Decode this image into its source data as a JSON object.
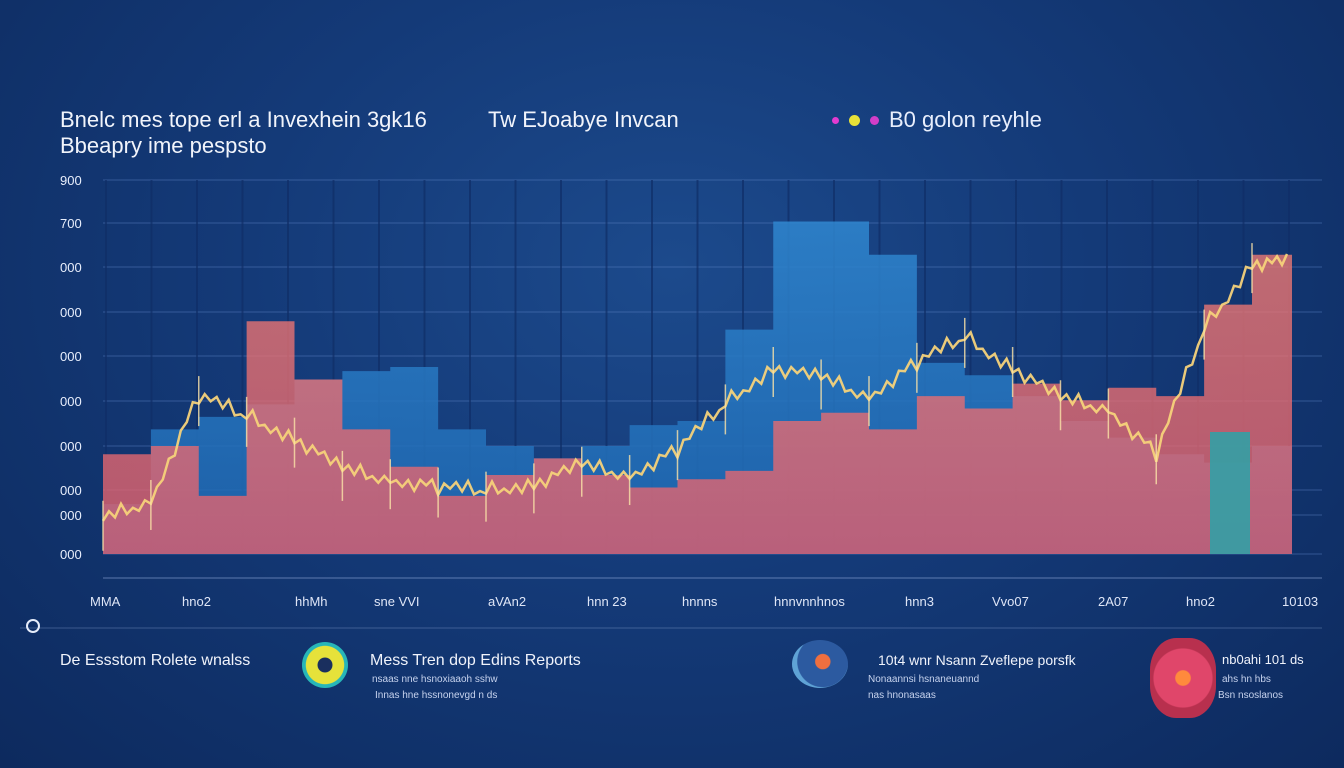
{
  "header": {
    "title_line1": "Bnelc mes tope erl a Invexhein 3gk16",
    "title_line2": "Bbeapry ime pespsto",
    "middle_text": "Tw EJoabye Invcan",
    "legend_text": "B0 golon reyhle"
  },
  "colors": {
    "background": "#143a78",
    "blue_area": "#2e7fc6",
    "salmon_area": "#ef6f72",
    "gold_line": "#f6d27a",
    "teal": "#2aa3a8",
    "legend_dot_1": "#e23bd0",
    "legend_dot_2": "#e8e238",
    "legend_dot_3": "#d23ec8"
  },
  "chart_data": {
    "type": "area",
    "y_tick_labels": [
      "900",
      "700",
      "000",
      "000",
      "000",
      "000",
      "000",
      "000",
      "000",
      "000"
    ],
    "x_tick_labels": [
      "MMA",
      "hno2",
      "hhMh",
      "sne VVI",
      "aVAn2",
      "hnn 23",
      "hnnns",
      "hnnvnnhnos",
      "hnn3",
      "Vvo07",
      "2A07",
      "hno2",
      "10103"
    ],
    "grid": true,
    "series": [
      {
        "name": "",
        "kind": "area",
        "color": "#2e7fc6",
        "x": [
          0,
          1,
          2,
          3,
          4,
          5,
          6,
          7,
          8,
          9,
          10,
          11,
          12,
          13,
          14,
          15,
          16,
          17,
          18,
          19,
          20,
          21,
          22,
          23,
          24
        ],
        "values": [
          120,
          300,
          330,
          360,
          420,
          440,
          450,
          300,
          260,
          230,
          260,
          310,
          320,
          540,
          800,
          800,
          720,
          460,
          430,
          380,
          320,
          280,
          240,
          220,
          260
        ]
      },
      {
        "name": "",
        "kind": "area",
        "color": "#ef6f72",
        "x": [
          0,
          1,
          2,
          3,
          4,
          5,
          6,
          7,
          8,
          9,
          10,
          11,
          12,
          13,
          14,
          15,
          16,
          17,
          18,
          19,
          20,
          21,
          22,
          23,
          24
        ],
        "values": [
          240,
          260,
          140,
          560,
          420,
          300,
          210,
          140,
          190,
          230,
          190,
          160,
          180,
          200,
          320,
          340,
          300,
          380,
          350,
          410,
          370,
          400,
          380,
          600,
          720
        ]
      },
      {
        "name": "",
        "kind": "line",
        "color": "#f6d27a",
        "x": [
          0,
          1,
          2,
          3,
          4,
          5,
          6,
          7,
          8,
          9,
          10,
          11,
          12,
          13,
          14,
          15,
          16,
          17,
          18,
          19,
          20,
          21,
          22,
          23,
          24
        ],
        "values": [
          80,
          130,
          380,
          330,
          280,
          200,
          180,
          160,
          150,
          170,
          210,
          190,
          250,
          360,
          450,
          420,
          380,
          460,
          520,
          450,
          370,
          350,
          240,
          540,
          700
        ]
      }
    ]
  },
  "footer": {
    "left_label": "De Essstom Rolete wnalss",
    "center_title": "Mess Tren dop Edins Reports",
    "center_sub1": "nsaas nne hsnoxiaaoh sshw",
    "center_sub2": "Innas hne hssnonevgd n ds",
    "right_title": "10t4 wnr Nsann Zveflepe porsfk",
    "right_sub1": "Nonaannsi hsnaneuannd",
    "right_sub2": "nas hnonasaas",
    "far_right_title": "nb0ahi 101 ds",
    "far_right_sub1": "ahs hn hbs",
    "far_right_sub2": "Bsn nsoslanos"
  }
}
